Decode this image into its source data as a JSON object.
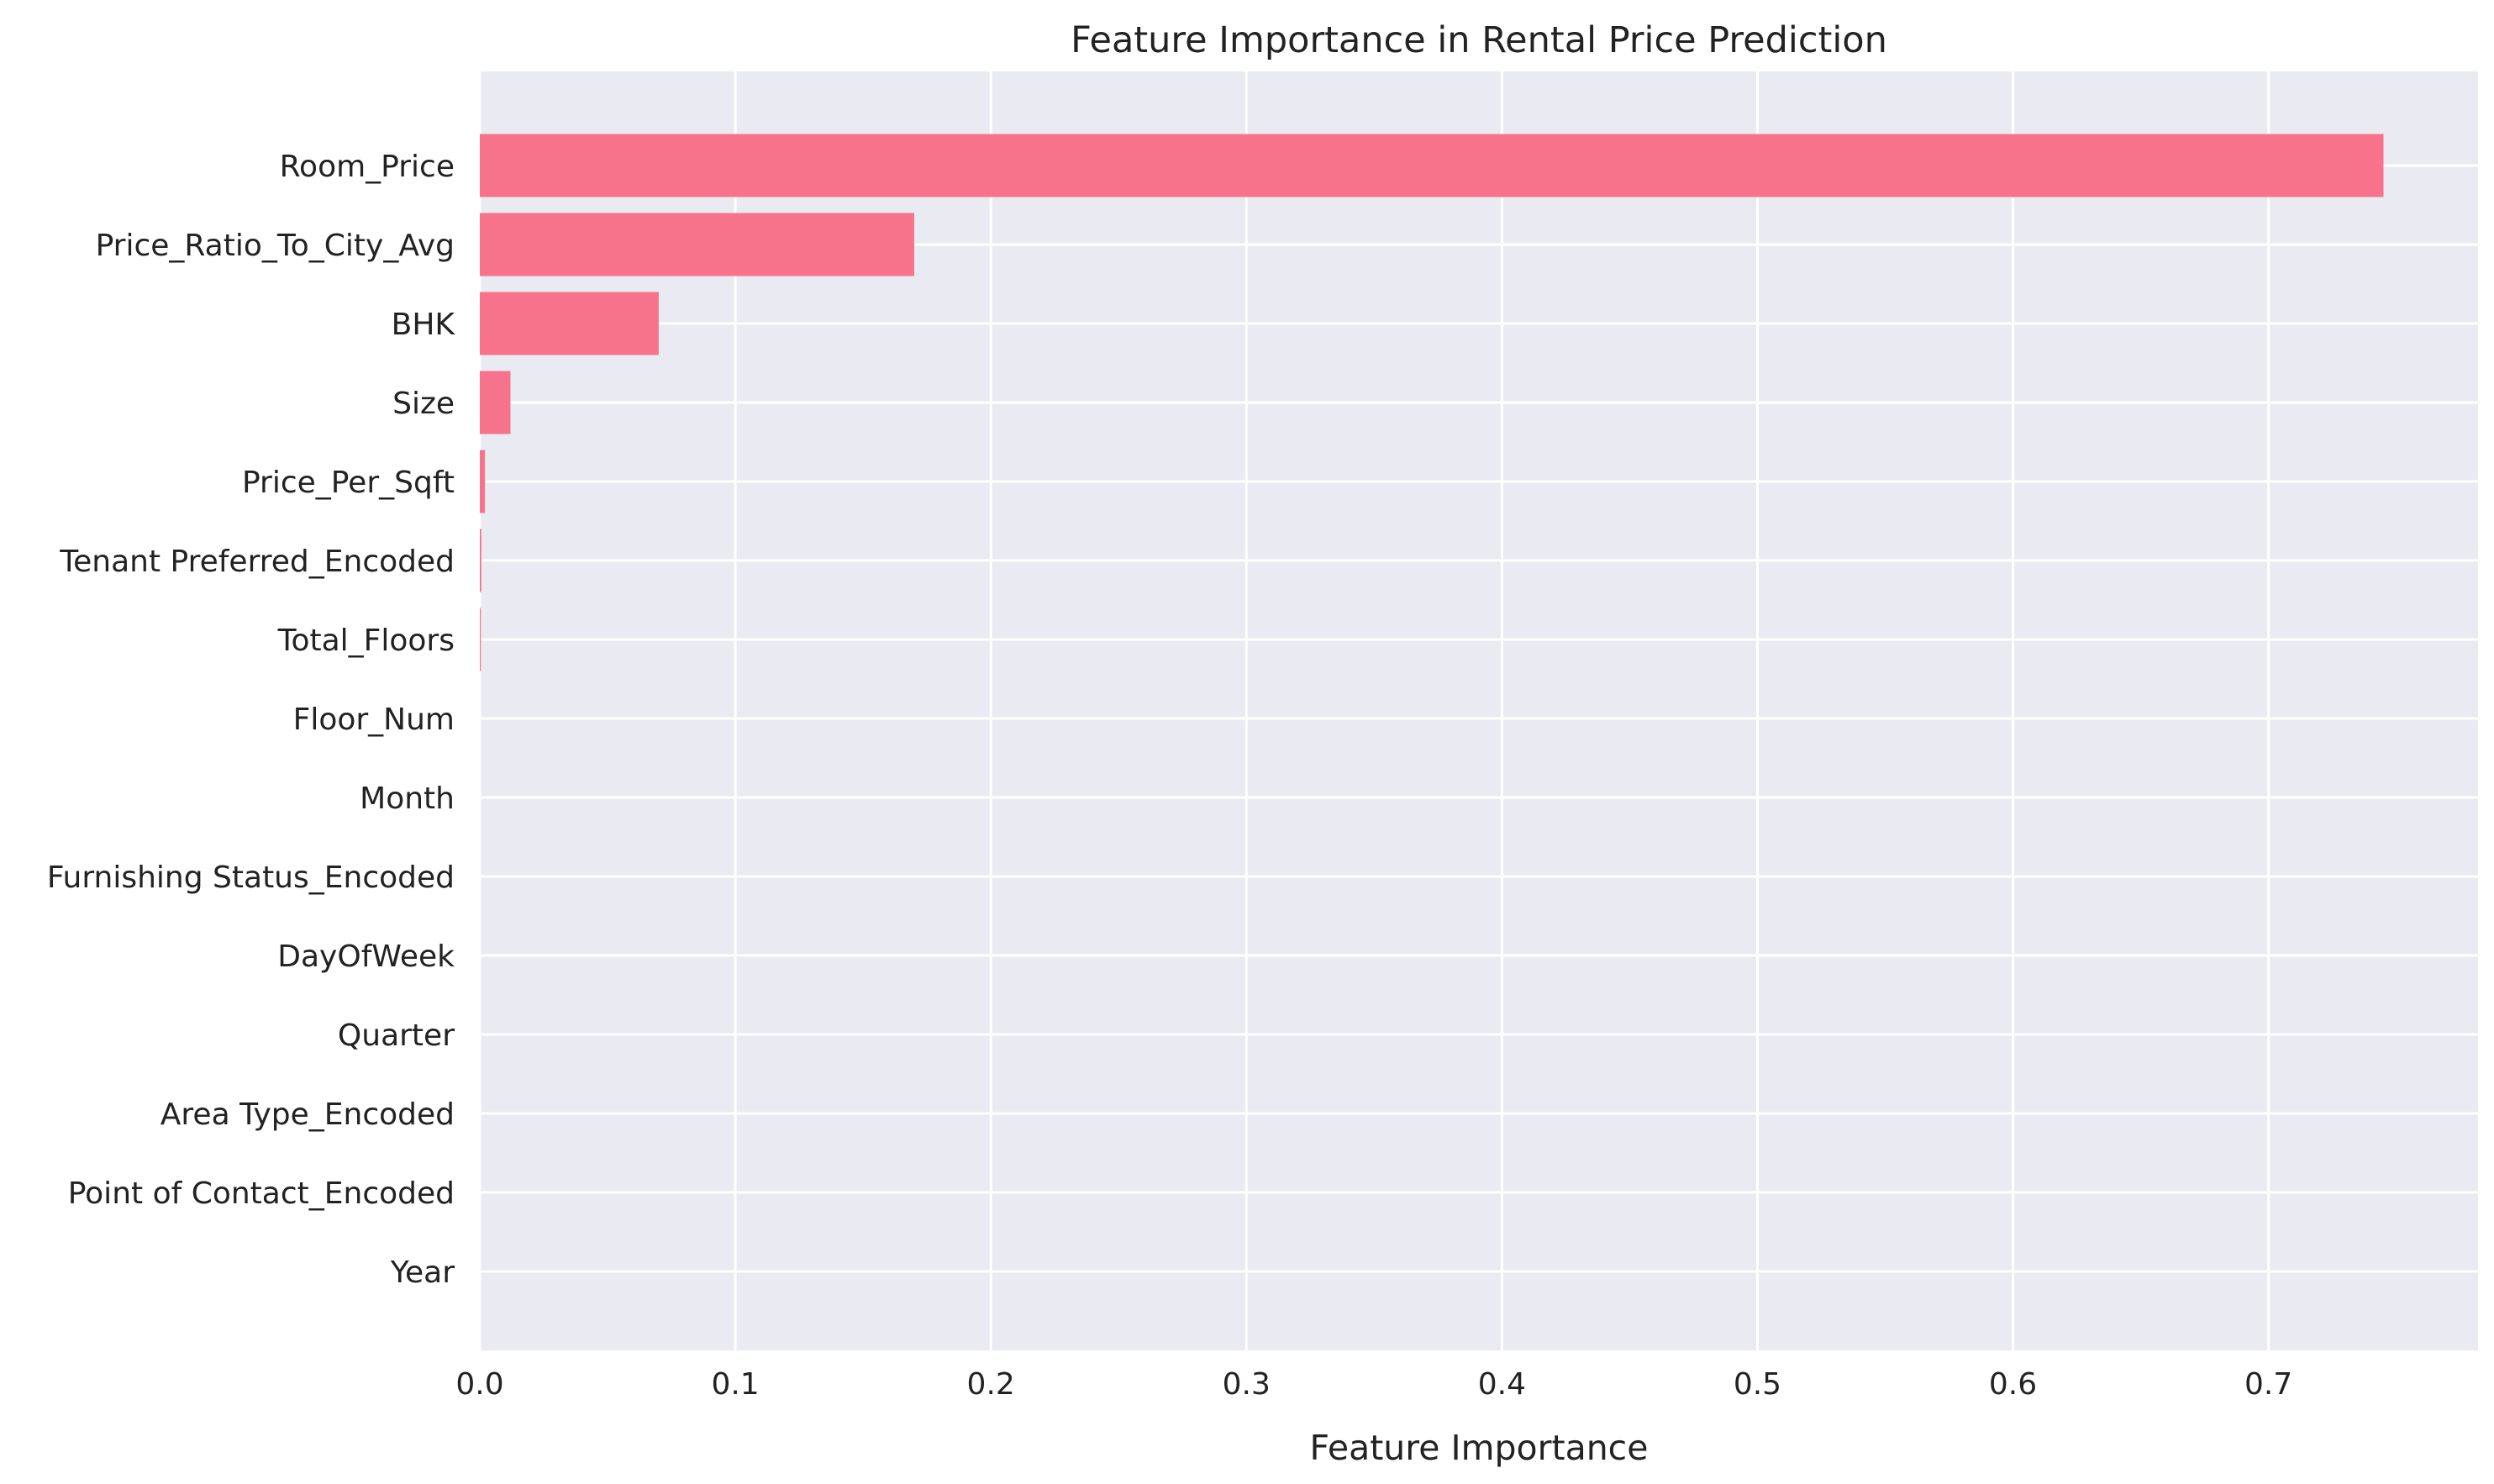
{
  "chart_data": {
    "type": "bar",
    "orientation": "horizontal",
    "title": "Feature Importance in Rental Price Prediction",
    "xlabel": "Feature Importance",
    "ylabel": "",
    "xlim": [
      0,
      0.782
    ],
    "x_ticks": [
      "0.0",
      "0.1",
      "0.2",
      "0.3",
      "0.4",
      "0.5",
      "0.6",
      "0.7"
    ],
    "grid": true,
    "bar_color": "#f7738b",
    "background_color": "#eaeaf2",
    "grid_color": "#ffffff",
    "categories": [
      "Room_Price",
      "Price_Ratio_To_City_Avg",
      "BHK",
      "Size",
      "Price_Per_Sqft",
      "Tenant Preferred_Encoded",
      "Total_Floors",
      "Floor_Num",
      "Month",
      "Furnishing Status_Encoded",
      "DayOfWeek",
      "Quarter",
      "Area Type_Encoded",
      "Point of Contact_Encoded",
      "Year"
    ],
    "values": [
      0.745,
      0.17,
      0.07,
      0.012,
      0.002,
      0.0006,
      0.0004,
      0.0,
      0.0,
      0.0,
      0.0,
      0.0,
      0.0,
      0.0,
      0.0
    ]
  }
}
